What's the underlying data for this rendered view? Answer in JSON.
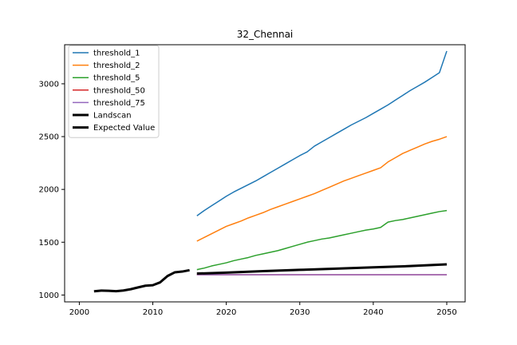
{
  "chart_data": {
    "type": "line",
    "title": "32_Chennai",
    "xlabel": "",
    "ylabel": "",
    "xlim": [
      1998,
      2052.5
    ],
    "ylim": [
      935,
      3370
    ],
    "xticks": [
      2000,
      2010,
      2020,
      2030,
      2040,
      2050
    ],
    "yticks": [
      1000,
      1500,
      2000,
      2500,
      3000
    ],
    "grid": false,
    "legend_position": "top-left",
    "series": [
      {
        "name": "threshold_1",
        "color": "#1f77b4",
        "width": 1.5,
        "points": [
          [
            2016,
            1750
          ],
          [
            2017,
            1800
          ],
          [
            2018,
            1845
          ],
          [
            2019,
            1890
          ],
          [
            2020,
            1935
          ],
          [
            2021,
            1975
          ],
          [
            2022,
            2010
          ],
          [
            2023,
            2045
          ],
          [
            2024,
            2080
          ],
          [
            2025,
            2120
          ],
          [
            2026,
            2160
          ],
          [
            2027,
            2200
          ],
          [
            2028,
            2240
          ],
          [
            2029,
            2280
          ],
          [
            2030,
            2320
          ],
          [
            2031,
            2355
          ],
          [
            2032,
            2410
          ],
          [
            2033,
            2450
          ],
          [
            2034,
            2490
          ],
          [
            2035,
            2530
          ],
          [
            2036,
            2570
          ],
          [
            2037,
            2610
          ],
          [
            2038,
            2645
          ],
          [
            2039,
            2680
          ],
          [
            2040,
            2720
          ],
          [
            2041,
            2760
          ],
          [
            2042,
            2800
          ],
          [
            2043,
            2845
          ],
          [
            2044,
            2890
          ],
          [
            2045,
            2935
          ],
          [
            2046,
            2975
          ],
          [
            2047,
            3015
          ],
          [
            2048,
            3060
          ],
          [
            2049,
            3105
          ],
          [
            2050,
            3310
          ]
        ]
      },
      {
        "name": "threshold_2",
        "color": "#ff7f0e",
        "width": 1.5,
        "points": [
          [
            2016,
            1510
          ],
          [
            2017,
            1545
          ],
          [
            2018,
            1580
          ],
          [
            2019,
            1615
          ],
          [
            2020,
            1650
          ],
          [
            2021,
            1675
          ],
          [
            2022,
            1700
          ],
          [
            2023,
            1730
          ],
          [
            2024,
            1755
          ],
          [
            2025,
            1780
          ],
          [
            2026,
            1810
          ],
          [
            2027,
            1835
          ],
          [
            2028,
            1860
          ],
          [
            2029,
            1885
          ],
          [
            2030,
            1910
          ],
          [
            2031,
            1935
          ],
          [
            2032,
            1960
          ],
          [
            2033,
            1990
          ],
          [
            2034,
            2020
          ],
          [
            2035,
            2050
          ],
          [
            2036,
            2080
          ],
          [
            2037,
            2105
          ],
          [
            2038,
            2130
          ],
          [
            2039,
            2155
          ],
          [
            2040,
            2180
          ],
          [
            2041,
            2205
          ],
          [
            2042,
            2260
          ],
          [
            2043,
            2300
          ],
          [
            2044,
            2340
          ],
          [
            2045,
            2370
          ],
          [
            2046,
            2400
          ],
          [
            2047,
            2430
          ],
          [
            2048,
            2455
          ],
          [
            2049,
            2475
          ],
          [
            2050,
            2500
          ]
        ]
      },
      {
        "name": "threshold_5",
        "color": "#2ca02c",
        "width": 1.5,
        "points": [
          [
            2016,
            1240
          ],
          [
            2017,
            1255
          ],
          [
            2018,
            1275
          ],
          [
            2019,
            1290
          ],
          [
            2020,
            1305
          ],
          [
            2021,
            1325
          ],
          [
            2022,
            1340
          ],
          [
            2023,
            1355
          ],
          [
            2024,
            1375
          ],
          [
            2025,
            1390
          ],
          [
            2026,
            1405
          ],
          [
            2027,
            1420
          ],
          [
            2028,
            1440
          ],
          [
            2029,
            1460
          ],
          [
            2030,
            1480
          ],
          [
            2031,
            1500
          ],
          [
            2032,
            1515
          ],
          [
            2033,
            1530
          ],
          [
            2034,
            1540
          ],
          [
            2035,
            1555
          ],
          [
            2036,
            1570
          ],
          [
            2037,
            1585
          ],
          [
            2038,
            1600
          ],
          [
            2039,
            1615
          ],
          [
            2040,
            1625
          ],
          [
            2041,
            1640
          ],
          [
            2042,
            1690
          ],
          [
            2043,
            1705
          ],
          [
            2044,
            1715
          ],
          [
            2045,
            1730
          ],
          [
            2046,
            1745
          ],
          [
            2047,
            1760
          ],
          [
            2048,
            1775
          ],
          [
            2049,
            1790
          ],
          [
            2050,
            1800
          ]
        ]
      },
      {
        "name": "threshold_50",
        "color": "#d62728",
        "width": 1.5,
        "points": [
          [
            2016,
            1192
          ],
          [
            2050,
            1192
          ]
        ]
      },
      {
        "name": "threshold_75",
        "color": "#9467bd",
        "width": 1.5,
        "points": [
          [
            2016,
            1192
          ],
          [
            2050,
            1192
          ]
        ]
      },
      {
        "name": "Landscan",
        "color": "#000000",
        "width": 3,
        "points": [
          [
            2002,
            1035
          ],
          [
            2003,
            1042
          ],
          [
            2004,
            1040
          ],
          [
            2005,
            1036
          ],
          [
            2006,
            1043
          ],
          [
            2007,
            1055
          ],
          [
            2008,
            1072
          ],
          [
            2009,
            1088
          ],
          [
            2010,
            1093
          ],
          [
            2011,
            1120
          ],
          [
            2012,
            1180
          ],
          [
            2013,
            1215
          ],
          [
            2014,
            1222
          ],
          [
            2015,
            1235
          ]
        ]
      },
      {
        "name": "Expected Value",
        "color": "#000000",
        "width": 3,
        "points": [
          [
            2016,
            1203
          ],
          [
            2020,
            1212
          ],
          [
            2025,
            1226
          ],
          [
            2030,
            1238
          ],
          [
            2035,
            1250
          ],
          [
            2040,
            1262
          ],
          [
            2045,
            1274
          ],
          [
            2050,
            1290
          ]
        ]
      }
    ]
  }
}
